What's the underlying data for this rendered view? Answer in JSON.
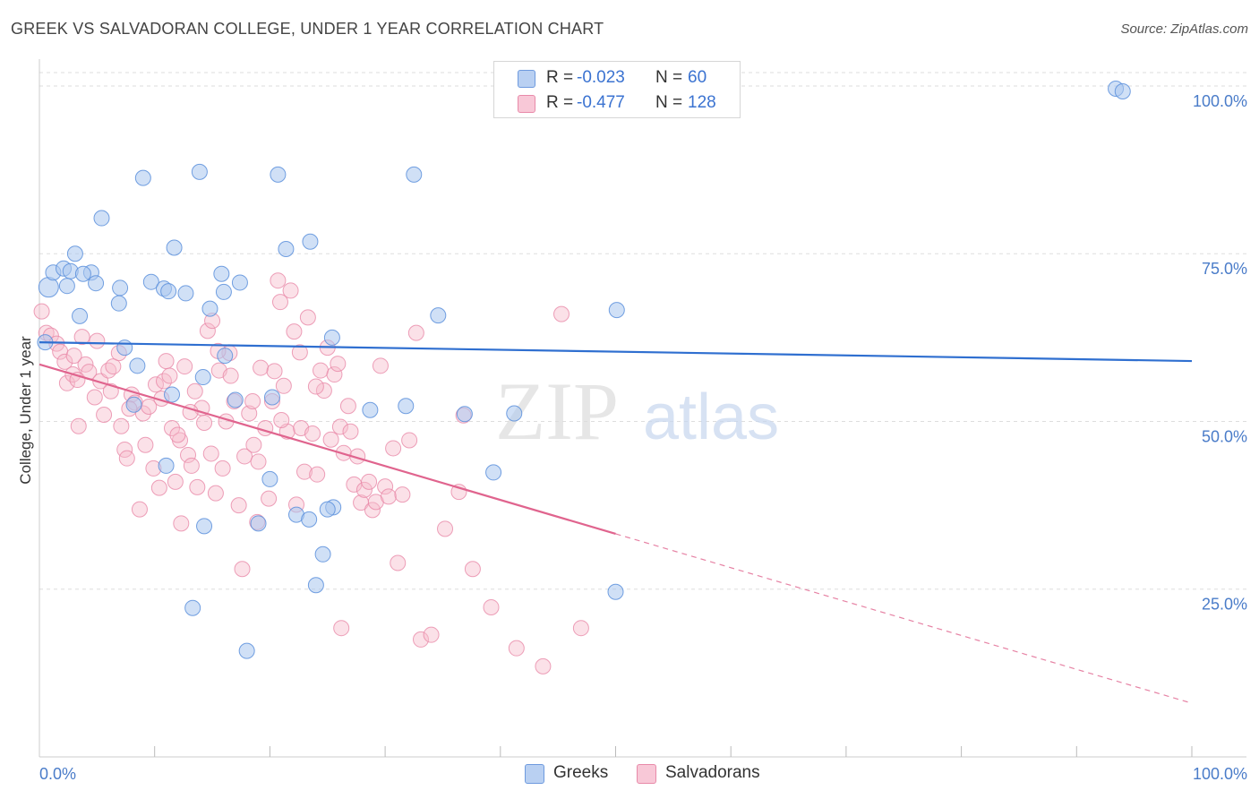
{
  "title": "GREEK VS SALVADORAN COLLEGE, UNDER 1 YEAR CORRELATION CHART",
  "source": "Source: ZipAtlas.com",
  "watermark": {
    "zip": "ZIP",
    "atlas": "atlas"
  },
  "colors": {
    "greek_fill": "#a9c6ef",
    "greek_stroke": "#5b8fdc",
    "greek_line": "#2f6fd0",
    "salv_fill": "#f6bccd",
    "salv_stroke": "#e888a8",
    "salv_line": "#e0648e",
    "grid": "#dddddd",
    "tick_text": "#4a7cc9"
  },
  "legend": {
    "rows": [
      {
        "r_label": "R =",
        "r_value": "-0.023",
        "n_label": "N =",
        "n_value": "60"
      },
      {
        "r_label": "R =",
        "r_value": "-0.477",
        "n_label": "N =",
        "n_value": "128"
      }
    ]
  },
  "bottom_legend": {
    "greeks": "Greeks",
    "salvadorans": "Salvadorans"
  },
  "chart_data": {
    "type": "scatter",
    "title": "GREEK VS SALVADORAN COLLEGE, UNDER 1 YEAR CORRELATION CHART",
    "xlabel": "",
    "ylabel": "College, Under 1 year",
    "xlim": [
      0,
      100
    ],
    "ylim": [
      0,
      102
    ],
    "x_tick_labels": [
      "0.0%",
      "100.0%"
    ],
    "y_ticks": [
      25,
      50,
      75,
      100
    ],
    "y_tick_labels": [
      "25.0%",
      "50.0%",
      "75.0%",
      "100.0%"
    ],
    "grid": true,
    "series": [
      {
        "name": "Greeks",
        "r": -0.023,
        "n": 60,
        "trend": {
          "x0": 0,
          "y0": 61.8,
          "x1": 100,
          "y1": 59.0,
          "solid_until": 100
        },
        "points": [
          [
            0.5,
            61.8
          ],
          [
            0.8,
            70.0
          ],
          [
            1.2,
            72.2
          ],
          [
            2.1,
            72.8
          ],
          [
            2.7,
            72.4
          ],
          [
            3.1,
            75.0
          ],
          [
            2.4,
            70.2
          ],
          [
            4.5,
            72.2
          ],
          [
            3.8,
            72.0
          ],
          [
            4.9,
            70.6
          ],
          [
            3.5,
            65.7
          ],
          [
            5.4,
            80.3
          ],
          [
            7.0,
            69.9
          ],
          [
            6.9,
            67.6
          ],
          [
            7.4,
            61.0
          ],
          [
            8.5,
            58.3
          ],
          [
            9.0,
            86.3
          ],
          [
            9.7,
            70.8
          ],
          [
            10.8,
            69.8
          ],
          [
            11.7,
            75.9
          ],
          [
            11.2,
            69.4
          ],
          [
            12.7,
            69.1
          ],
          [
            13.9,
            87.2
          ],
          [
            14.8,
            66.8
          ],
          [
            15.8,
            72.0
          ],
          [
            16.0,
            69.3
          ],
          [
            17.4,
            70.7
          ],
          [
            16.1,
            59.8
          ],
          [
            14.2,
            56.6
          ],
          [
            17.0,
            53.2
          ],
          [
            20.7,
            86.8
          ],
          [
            21.4,
            75.7
          ],
          [
            23.5,
            76.8
          ],
          [
            32.5,
            86.8
          ],
          [
            25.4,
            62.5
          ],
          [
            20.2,
            53.6
          ],
          [
            28.7,
            51.7
          ],
          [
            31.8,
            52.3
          ],
          [
            41.2,
            51.2
          ],
          [
            39.4,
            42.4
          ],
          [
            34.6,
            65.8
          ],
          [
            20.0,
            41.4
          ],
          [
            11.0,
            43.4
          ],
          [
            14.3,
            34.4
          ],
          [
            19.0,
            34.8
          ],
          [
            22.3,
            36.1
          ],
          [
            23.4,
            35.4
          ],
          [
            25.5,
            37.2
          ],
          [
            24.6,
            30.2
          ],
          [
            18.0,
            15.8
          ],
          [
            13.3,
            22.2
          ],
          [
            24.0,
            25.6
          ],
          [
            50.0,
            24.6
          ],
          [
            50.1,
            66.6
          ],
          [
            93.4,
            99.6
          ],
          [
            94.0,
            99.2
          ],
          [
            8.2,
            52.5
          ],
          [
            11.5,
            54.0
          ],
          [
            25.0,
            36.9
          ],
          [
            36.9,
            51.1
          ]
        ]
      },
      {
        "name": "Salvadorans",
        "r": -0.477,
        "n": 128,
        "trend": {
          "x0": 0,
          "y0": 58.5,
          "x1": 100,
          "y1": 8.0,
          "solid_until": 50
        },
        "points": [
          [
            0.2,
            66.4
          ],
          [
            0.6,
            63.2
          ],
          [
            1.0,
            62.8
          ],
          [
            1.5,
            61.6
          ],
          [
            1.8,
            60.4
          ],
          [
            2.2,
            58.9
          ],
          [
            2.4,
            55.7
          ],
          [
            2.9,
            57.0
          ],
          [
            3.3,
            56.2
          ],
          [
            3.4,
            49.3
          ],
          [
            3.7,
            62.6
          ],
          [
            4.0,
            58.5
          ],
          [
            4.3,
            57.4
          ],
          [
            4.8,
            53.6
          ],
          [
            5.3,
            56.0
          ],
          [
            5.6,
            51.0
          ],
          [
            6.0,
            57.6
          ],
          [
            6.4,
            58.2
          ],
          [
            6.9,
            60.2
          ],
          [
            7.1,
            49.3
          ],
          [
            7.4,
            45.8
          ],
          [
            7.6,
            44.5
          ],
          [
            8.0,
            54.0
          ],
          [
            8.3,
            52.8
          ],
          [
            8.7,
            36.9
          ],
          [
            9.0,
            51.2
          ],
          [
            9.5,
            52.2
          ],
          [
            9.9,
            43.0
          ],
          [
            10.1,
            55.5
          ],
          [
            10.4,
            40.1
          ],
          [
            10.8,
            56.0
          ],
          [
            11.0,
            59.0
          ],
          [
            11.5,
            49.0
          ],
          [
            11.8,
            41.0
          ],
          [
            12.2,
            47.2
          ],
          [
            12.3,
            34.8
          ],
          [
            12.6,
            58.2
          ],
          [
            12.9,
            45.0
          ],
          [
            13.2,
            43.4
          ],
          [
            13.5,
            54.5
          ],
          [
            13.7,
            40.2
          ],
          [
            14.1,
            52.0
          ],
          [
            14.3,
            49.8
          ],
          [
            14.6,
            63.5
          ],
          [
            15.0,
            65.0
          ],
          [
            15.3,
            39.3
          ],
          [
            15.6,
            57.6
          ],
          [
            15.9,
            43.0
          ],
          [
            16.2,
            50.0
          ],
          [
            16.5,
            60.2
          ],
          [
            16.9,
            53.0
          ],
          [
            17.3,
            37.5
          ],
          [
            17.6,
            28.0
          ],
          [
            17.8,
            44.8
          ],
          [
            18.2,
            51.2
          ],
          [
            18.6,
            46.5
          ],
          [
            18.9,
            35.0
          ],
          [
            19.2,
            58.0
          ],
          [
            19.6,
            49.0
          ],
          [
            19.9,
            38.5
          ],
          [
            20.2,
            53.0
          ],
          [
            20.7,
            71.0
          ],
          [
            20.9,
            67.8
          ],
          [
            21.2,
            55.3
          ],
          [
            21.5,
            48.5
          ],
          [
            21.8,
            69.5
          ],
          [
            22.1,
            63.4
          ],
          [
            22.3,
            37.6
          ],
          [
            22.7,
            49.0
          ],
          [
            23.0,
            42.5
          ],
          [
            23.3,
            65.5
          ],
          [
            23.7,
            48.2
          ],
          [
            24.1,
            42.1
          ],
          [
            24.4,
            57.6
          ],
          [
            24.7,
            54.6
          ],
          [
            25.0,
            61.0
          ],
          [
            25.3,
            47.3
          ],
          [
            25.6,
            57.0
          ],
          [
            25.9,
            58.6
          ],
          [
            26.1,
            49.2
          ],
          [
            26.4,
            45.3
          ],
          [
            26.8,
            52.3
          ],
          [
            27.0,
            48.5
          ],
          [
            27.3,
            40.6
          ],
          [
            27.6,
            44.8
          ],
          [
            27.9,
            37.9
          ],
          [
            28.2,
            39.8
          ],
          [
            28.6,
            41.0
          ],
          [
            28.9,
            36.8
          ],
          [
            29.2,
            38.0
          ],
          [
            29.6,
            58.3
          ],
          [
            30.0,
            40.3
          ],
          [
            30.3,
            38.8
          ],
          [
            30.7,
            46.0
          ],
          [
            31.1,
            28.9
          ],
          [
            31.5,
            39.1
          ],
          [
            32.1,
            47.2
          ],
          [
            32.7,
            63.2
          ],
          [
            33.1,
            17.5
          ],
          [
            34.0,
            18.2
          ],
          [
            35.2,
            34.0
          ],
          [
            36.4,
            39.5
          ],
          [
            36.8,
            50.9
          ],
          [
            37.6,
            28.0
          ],
          [
            39.2,
            22.3
          ],
          [
            41.4,
            16.2
          ],
          [
            43.7,
            13.5
          ],
          [
            45.3,
            66.0
          ],
          [
            47.0,
            19.2
          ],
          [
            26.2,
            19.2
          ],
          [
            18.5,
            53.0
          ],
          [
            20.4,
            57.5
          ],
          [
            22.6,
            60.3
          ],
          [
            24.0,
            55.2
          ],
          [
            6.2,
            54.5
          ],
          [
            9.2,
            46.5
          ],
          [
            11.3,
            56.8
          ],
          [
            13.1,
            51.4
          ],
          [
            14.9,
            45.2
          ],
          [
            16.6,
            56.8
          ],
          [
            3.0,
            59.8
          ],
          [
            5.0,
            62.0
          ],
          [
            7.8,
            51.9
          ],
          [
            10.6,
            53.4
          ],
          [
            12.0,
            48.0
          ],
          [
            15.5,
            60.5
          ],
          [
            19.0,
            44.0
          ],
          [
            21.0,
            50.2
          ]
        ]
      }
    ]
  }
}
